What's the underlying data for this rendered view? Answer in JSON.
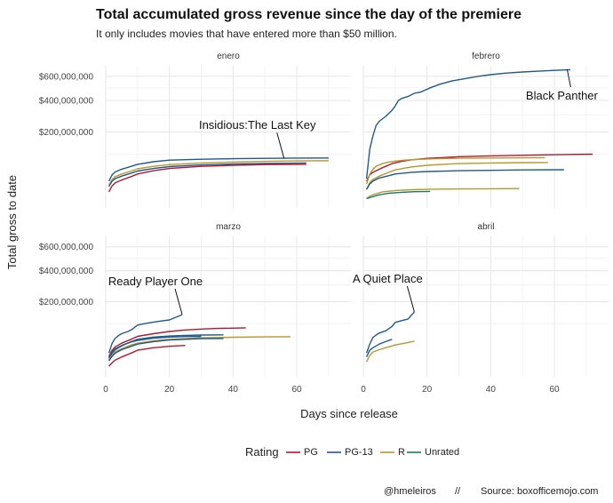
{
  "chart_data": {
    "type": "line",
    "title": "Total accumulated gross revenue since the day of the premiere",
    "subtitle": "It only includes movies that have entered more than $50 million.",
    "xlabel": "Days since release",
    "ylabel": "Total gross to date",
    "xlim": [
      0,
      77
    ],
    "ylim": [
      0,
      700000000
    ],
    "y_scale": "sqrt",
    "x_ticks": [
      0,
      20,
      40,
      60
    ],
    "y_ticks": [
      200000000,
      400000000,
      600000000
    ],
    "y_tick_labels": [
      "$200,000,000",
      "$400,000,000",
      "$600,000,000"
    ],
    "grid": true,
    "legend": {
      "title": "Rating",
      "position": "bottom",
      "entries": [
        {
          "label": "PG",
          "color": "#b2182b"
        },
        {
          "label": "PG-13",
          "color": "#1f5a8b"
        },
        {
          "label": "R",
          "color": "#b8962e"
        },
        {
          "label": "Unrated",
          "color": "#1a7a5e"
        }
      ]
    },
    "caption": {
      "handle": "@hmeleiros",
      "separator": "//",
      "source": "Source: boxofficemojo.com"
    },
    "panels": [
      {
        "name": "enero",
        "annotation": {
          "text": "Insidious:The Last Key",
          "x": 56,
          "y": 85000000
        },
        "series": [
          {
            "rating": "PG-13",
            "x": [
              1,
              2,
              3,
              5,
              8,
              10,
              15,
              20,
              30,
              40,
              50,
              60,
              70
            ],
            "y": [
              25000000,
              38000000,
              45000000,
              52000000,
              60000000,
              66000000,
              74000000,
              79000000,
              82000000,
              84000000,
              85000000,
              86000000,
              86500000
            ]
          },
          {
            "rating": "R",
            "x": [
              1,
              2,
              3,
              5,
              8,
              10,
              15,
              20,
              30,
              40,
              50,
              60,
              70
            ],
            "y": [
              18000000,
              28000000,
              34000000,
              40000000,
              47000000,
              53000000,
              60000000,
              65000000,
              70000000,
              73000000,
              75000000,
              76500000,
              77500000
            ]
          },
          {
            "rating": "PG-13",
            "x": [
              1,
              2,
              3,
              5,
              8,
              10,
              15,
              20,
              30,
              40,
              50,
              63
            ],
            "y": [
              16000000,
              25000000,
              30000000,
              35000000,
              42000000,
              47000000,
              54000000,
              59000000,
              64000000,
              67000000,
              68500000,
              70000000
            ]
          },
          {
            "rating": "PG",
            "x": [
              1,
              2,
              3,
              5,
              8,
              10,
              15,
              20,
              30,
              40,
              50,
              63
            ],
            "y": [
              9000000,
              17000000,
              22000000,
              27000000,
              34000000,
              40000000,
              48000000,
              54000000,
              60000000,
              63000000,
              65000000,
              66000000
            ]
          }
        ]
      },
      {
        "name": "febrero",
        "annotation": {
          "text": "Black Panther",
          "x": 64,
          "y": 665000000
        },
        "series": [
          {
            "rating": "PG-13",
            "x": [
              1,
              2,
              3,
              4,
              5,
              7,
              9,
              10,
              11,
              12,
              14,
              16,
              18,
              21,
              24,
              28,
              32,
              36,
              40,
              45,
              50,
              55,
              60,
              65
            ],
            "y": [
              30000000,
              120000000,
              180000000,
              235000000,
              260000000,
              290000000,
              330000000,
              360000000,
              400000000,
              415000000,
              430000000,
              455000000,
              465000000,
              500000000,
              530000000,
              560000000,
              580000000,
              600000000,
              615000000,
              630000000,
              640000000,
              648000000,
              655000000,
              662000000
            ]
          },
          {
            "rating": "PG",
            "x": [
              1,
              2,
              3,
              5,
              7,
              9,
              12,
              15,
              20,
              25,
              30,
              40,
              50,
              60,
              72
            ],
            "y": [
              25000000,
              38000000,
              44000000,
              52000000,
              60000000,
              68000000,
              75000000,
              80000000,
              85000000,
              88000000,
              91000000,
              94000000,
              96000000,
              98000000,
              100000000
            ]
          },
          {
            "rating": "R",
            "x": [
              1,
              2,
              3,
              4,
              6,
              8,
              10,
              13,
              16,
              20,
              25,
              30,
              40,
              50,
              57
            ],
            "y": [
              20000000,
              40000000,
              52000000,
              60000000,
              68000000,
              73000000,
              76000000,
              79000000,
              81000000,
              83000000,
              84500000,
              85500000,
              86500000,
              87000000,
              87500000
            ]
          },
          {
            "rating": "R",
            "x": [
              1,
              2,
              3,
              5,
              8,
              10,
              15,
              20,
              25,
              30,
              40,
              50,
              58
            ],
            "y": [
              12000000,
              22000000,
              28000000,
              35000000,
              44000000,
              50000000,
              58000000,
              63000000,
              66000000,
              68000000,
              70000000,
              71000000,
              71500000
            ]
          },
          {
            "rating": "PG-13",
            "x": [
              1,
              2,
              3,
              5,
              8,
              10,
              15,
              20,
              30,
              40,
              50,
              63
            ],
            "y": [
              12000000,
              20000000,
              25000000,
              31000000,
              36000000,
              40000000,
              44000000,
              46000000,
              48000000,
              49000000,
              50000000,
              50500000
            ]
          },
          {
            "rating": "R",
            "x": [
              1,
              2,
              4,
              6,
              10,
              15,
              20,
              30,
              40,
              49
            ],
            "y": [
              3000000,
              5000000,
              7000000,
              9000000,
              10500000,
              11500000,
              12000000,
              12500000,
              12800000,
              13000000
            ]
          },
          {
            "rating": "Unrated",
            "x": [
              1,
              3,
              5,
              8,
              12,
              16,
              21
            ],
            "y": [
              3000000,
              4500000,
              6000000,
              7500000,
              8500000,
              9200000,
              9500000
            ]
          }
        ]
      },
      {
        "name": "marzo",
        "annotation": {
          "text": "Ready Player One",
          "x": 24,
          "y": 138000000
        },
        "series": [
          {
            "rating": "PG-13",
            "x": [
              1,
              2,
              3,
              4,
              5,
              7,
              8,
              10,
              12,
              14,
              17,
              20,
              24
            ],
            "y": [
              20000000,
              40000000,
              53000000,
              60000000,
              66000000,
              73000000,
              78000000,
              95000000,
              100000000,
              104000000,
              110000000,
              115000000,
              137000000
            ]
          },
          {
            "rating": "PG",
            "x": [
              1,
              2,
              3,
              5,
              8,
              10,
              15,
              20,
              25,
              30,
              35,
              44
            ],
            "y": [
              15000000,
              25000000,
              32000000,
              40000000,
              50000000,
              58000000,
              66000000,
              73000000,
              78000000,
              81000000,
              83000000,
              85000000
            ]
          },
          {
            "rating": "PG-13",
            "x": [
              1,
              2,
              3,
              5,
              8,
              10,
              15,
              20,
              25,
              30,
              37
            ],
            "y": [
              12000000,
              20000000,
              26000000,
              34000000,
              44000000,
              50000000,
              56000000,
              59000000,
              61000000,
              62000000,
              62500000
            ]
          },
          {
            "rating": "R",
            "x": [
              1,
              2,
              3,
              5,
              8,
              10,
              15,
              20,
              25,
              30,
              40,
              50,
              58
            ],
            "y": [
              10000000,
              17000000,
              22000000,
              28000000,
              36000000,
              40000000,
              46000000,
              50000000,
              52000000,
              54000000,
              55500000,
              56500000,
              57000000
            ]
          },
          {
            "rating": "PG-13",
            "x": [
              1,
              2,
              3,
              5,
              8,
              10,
              15,
              20,
              25,
              30
            ],
            "y": [
              13000000,
              22000000,
              28000000,
              35000000,
              43000000,
              47000000,
              53000000,
              56000000,
              57500000,
              58000000
            ]
          },
          {
            "rating": "PG-13",
            "x": [
              1,
              2,
              3,
              5,
              8,
              10,
              15,
              20,
              25,
              30,
              37
            ],
            "y": [
              9000000,
              15000000,
              20000000,
              26000000,
              33000000,
              38000000,
              44000000,
              48000000,
              50000000,
              51500000,
              52000000
            ]
          },
          {
            "rating": "PG",
            "x": [
              1,
              2,
              3,
              5,
              8,
              10,
              15,
              20,
              25
            ],
            "y": [
              4000000,
              7000000,
              10000000,
              14000000,
              20000000,
              25000000,
              30000000,
              33000000,
              35000000
            ]
          }
        ]
      },
      {
        "name": "abril",
        "annotation": {
          "text": "A Quiet Place",
          "x": 16,
          "y": 150000000
        },
        "series": [
          {
            "rating": "PG-13",
            "x": [
              1,
              2,
              3,
              4,
              5,
              7,
              9,
              10,
              12,
              14,
              16
            ],
            "y": [
              20000000,
              38000000,
              55000000,
              62000000,
              68000000,
              75000000,
              90000000,
              105000000,
              112000000,
              118000000,
              150000000
            ]
          },
          {
            "rating": "PG-13",
            "x": [
              1,
              2,
              3,
              5,
              7,
              9
            ],
            "y": [
              14000000,
              25000000,
              30000000,
              38000000,
              44000000,
              50000000
            ]
          },
          {
            "rating": "R",
            "x": [
              1,
              2,
              3,
              5,
              7,
              10,
              13,
              16
            ],
            "y": [
              8000000,
              16000000,
              22000000,
              26000000,
              30000000,
              36000000,
              40000000,
              45000000
            ]
          }
        ]
      }
    ]
  }
}
